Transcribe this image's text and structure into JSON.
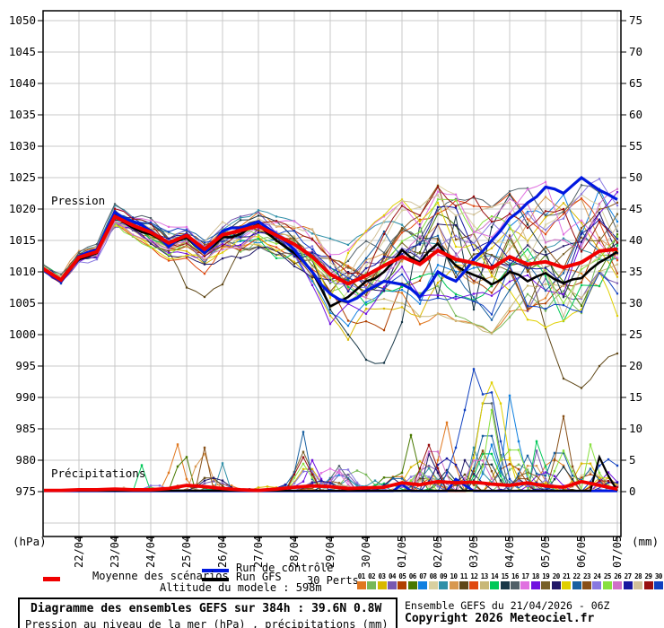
{
  "legend": {
    "mean_label": "Moyenne des scénarios",
    "control_label": "Run de contrôle",
    "gfs_label": "Run GFS",
    "perts_label": "30 Perts.",
    "altitude_label": "Altitude du modele : 598m",
    "mean_color": "#f00000",
    "control_color": "#0018e0",
    "gfs_color": "#000000",
    "pert_numbers": [
      "01",
      "02",
      "03",
      "04",
      "05",
      "06",
      "07",
      "08",
      "09",
      "10",
      "11",
      "12",
      "13",
      "14",
      "15",
      "16",
      "17",
      "18",
      "19",
      "20",
      "21",
      "22",
      "23",
      "24",
      "25",
      "26",
      "27",
      "28",
      "29",
      "30"
    ]
  },
  "footer": {
    "title": "Diagramme des ensembles GEFS sur 384h : 39.6N 0.8W",
    "subtitle": "Pression au niveau de la mer (hPa) , précipitations (mm)",
    "run_info": "Ensemble GEFS du 21/04/2026 - 06Z",
    "copyright": "Copyright 2026 Meteociel.fr"
  },
  "chart_data": {
    "type": "line",
    "title": "Diagramme des ensembles GEFS sur 384h : 39.6N 0.8W",
    "subtitle": "Pression au niveau de la mer (hPa) , précipitations (mm)",
    "pressure_area_label": "Pression",
    "precip_area_label": "Précipitations",
    "left_unit": "(hPa)",
    "right_unit": "(mm)",
    "x_axis": {
      "labels": [
        "22/04",
        "23/04",
        "24/04",
        "25/04",
        "26/04",
        "27/04",
        "28/04",
        "29/04",
        "30/04",
        "01/05",
        "02/05",
        "03/05",
        "04/05",
        "05/05",
        "06/05",
        "07/05"
      ],
      "step_hours": 12,
      "range_hours": 384
    },
    "y_left": {
      "ticks": [
        975,
        980,
        985,
        990,
        995,
        1000,
        1005,
        1010,
        1015,
        1020,
        1025,
        1030,
        1035,
        1040,
        1045,
        1050
      ],
      "range": [
        967.5,
        1051.5
      ]
    },
    "y_right": {
      "ticks": [
        0,
        5,
        10,
        15,
        20,
        25,
        30,
        35,
        40,
        45,
        50,
        55,
        60,
        65,
        70,
        75
      ],
      "range": [
        0,
        80
      ]
    },
    "grid": true,
    "legend_position": "bottom",
    "pressure": {
      "mean": [
        1010.5,
        1008.7,
        1012.3,
        1013.2,
        1018.8,
        1017.4,
        1016.3,
        1014.6,
        1015.8,
        1013.6,
        1015.9,
        1016.6,
        1017.3,
        1015.8,
        1014.4,
        1012.4,
        1009.6,
        1008.1,
        1009.4,
        1011.0,
        1012.4,
        1011.2,
        1013.4,
        1012.0,
        1011.4,
        1010.6,
        1012.4,
        1011.2,
        1011.6,
        1010.7,
        1011.5,
        1013.3,
        1013.6
      ],
      "control": [
        1010.3,
        1008.5,
        1012.5,
        1013.5,
        1019.5,
        1018.0,
        1016.5,
        1014.0,
        1016.0,
        1013.0,
        1016.5,
        1017.0,
        1018.0,
        1016.0,
        1013.5,
        1010.0,
        1006.5,
        1005.2,
        1007.0,
        1008.5,
        1008.0,
        1006.0,
        1010.0,
        1008.5,
        1012.0,
        1015.0,
        1018.5,
        1021.0,
        1023.5,
        1022.5,
        1025.0,
        1023.0,
        1021.5
      ],
      "gfs": [
        1010.4,
        1008.6,
        1012.0,
        1013.0,
        1019.0,
        1017.0,
        1016.0,
        1014.5,
        1015.5,
        1013.0,
        1015.5,
        1016.0,
        1017.5,
        1015.0,
        1013.0,
        1010.0,
        1004.5,
        1006.0,
        1008.5,
        1010.0,
        1013.5,
        1011.5,
        1014.5,
        1011.0,
        1009.5,
        1008.0,
        1010.0,
        1008.5,
        1009.8,
        1008.2,
        1009.0,
        1011.5,
        1013.2
      ],
      "env_min": [
        1009.5,
        1007.8,
        1011.3,
        1012.0,
        1016.5,
        1015.0,
        1013.8,
        1012.0,
        1012.5,
        1010.0,
        1011.5,
        1011.0,
        1013.0,
        1011.0,
        1009.0,
        1005.5,
        1001.5,
        999.5,
        1000.0,
        1001.0,
        1002.0,
        999.0,
        1003.0,
        1002.5,
        1002.0,
        1000.5,
        1003.0,
        1000.0,
        1001.0,
        997.0,
        999.0,
        1002.0,
        1002.5
      ],
      "env_max": [
        1011.5,
        1009.6,
        1013.3,
        1014.3,
        1020.5,
        1019.2,
        1018.5,
        1017.0,
        1018.0,
        1016.5,
        1018.2,
        1018.5,
        1019.5,
        1018.5,
        1018.0,
        1016.5,
        1015.0,
        1014.0,
        1016.0,
        1018.5,
        1021.0,
        1020.0,
        1023.5,
        1022.0,
        1021.5,
        1020.0,
        1022.5,
        1023.0,
        1024.0,
        1022.0,
        1023.5,
        1024.5,
        1024.5
      ],
      "member_anchors": {
        "6": [
          [
            30,
            1016.0
          ],
          [
            32,
            1018.0
          ]
        ],
        "10": [
          [
            8,
            1007.5
          ],
          [
            9,
            1006.0
          ],
          [
            10,
            1008.0
          ],
          [
            26,
            1011.0
          ],
          [
            28,
            1001.0
          ],
          [
            29,
            993.0
          ],
          [
            30,
            991.5
          ],
          [
            31,
            995.0
          ],
          [
            32,
            997.0
          ]
        ],
        "14": [
          [
            16,
            1004.0
          ],
          [
            17,
            1000.0
          ],
          [
            18,
            996.0
          ],
          [
            19,
            995.5
          ],
          [
            20,
            1002.0
          ],
          [
            22,
            1006.0
          ],
          [
            24,
            1004.0
          ]
        ],
        "20": [
          [
            17,
            1013.0
          ],
          [
            18,
            1016.5
          ],
          [
            19,
            1019.0
          ],
          [
            20,
            1021.5
          ],
          [
            21,
            1018.0
          ],
          [
            22,
            1021.0
          ],
          [
            23,
            1014.0
          ],
          [
            26,
            1007.0
          ],
          [
            30,
            1004.0
          ],
          [
            32,
            1003.0
          ]
        ],
        "28": [
          [
            19,
            1016.0
          ],
          [
            20,
            1020.5
          ],
          [
            21,
            1019.0
          ],
          [
            22,
            1023.5
          ],
          [
            23,
            1020.5
          ],
          [
            24,
            1022.0
          ],
          [
            25,
            1018.0
          ],
          [
            27,
            1017.0
          ],
          [
            29,
            1020.0
          ],
          [
            31,
            1018.0
          ]
        ]
      }
    },
    "precip": {
      "mean": [
        0.2,
        0.2,
        0.3,
        0.3,
        0.4,
        0.3,
        0.3,
        0.5,
        1.0,
        0.8,
        0.5,
        0.3,
        0.2,
        0.4,
        0.7,
        0.9,
        0.8,
        0.5,
        0.6,
        0.7,
        1.4,
        1.1,
        1.6,
        1.4,
        1.5,
        1.2,
        1.0,
        1.4,
        0.9,
        0.7,
        1.6,
        1.0,
        0.4
      ],
      "max_env": [
        0.5,
        0.5,
        0.6,
        0.8,
        1.5,
        2,
        1.5,
        4.5,
        8,
        7,
        3,
        1,
        1,
        3,
        9.5,
        7,
        6.5,
        3.5,
        7,
        5.5,
        11,
        9,
        12,
        14,
        19.5,
        15.5,
        8,
        7,
        12,
        7.5,
        7.5,
        4.5,
        2.5
      ],
      "member_spikes": {
        "0": [
          [
            14,
            3
          ],
          [
            15,
            7.5
          ],
          [
            16,
            2
          ],
          [
            44,
            5
          ],
          [
            45,
            11
          ],
          [
            46,
            4
          ]
        ],
        "3": [
          [
            55,
            6.5
          ],
          [
            56,
            2
          ]
        ],
        "5": [
          [
            15,
            4
          ],
          [
            16,
            5.5
          ],
          [
            40,
            3
          ],
          [
            41,
            9
          ],
          [
            42,
            3
          ]
        ],
        "6": [
          [
            51,
            3
          ],
          [
            52,
            15.3
          ],
          [
            53,
            8
          ],
          [
            54,
            2
          ]
        ],
        "8": [
          [
            20,
            4.5
          ],
          [
            48,
            7
          ],
          [
            49,
            3
          ]
        ],
        "9": [
          [
            17,
            4
          ],
          [
            18,
            6
          ],
          [
            19,
            2
          ]
        ],
        "13": [
          [
            11,
            4.2
          ],
          [
            55,
            8
          ],
          [
            56,
            4
          ]
        ],
        "17": [
          [
            30,
            5
          ],
          [
            31,
            2
          ]
        ],
        "19": [
          [
            43,
            6
          ],
          [
            44,
            3
          ],
          [
            47,
            5
          ]
        ],
        "21": [
          [
            28,
            3
          ],
          [
            29,
            9.5
          ],
          [
            30,
            2
          ]
        ],
        "22": [
          [
            18,
            7
          ],
          [
            57,
            5
          ],
          [
            58,
            12
          ],
          [
            59,
            4
          ]
        ],
        "24": [
          [
            49,
            4
          ],
          [
            50,
            13
          ],
          [
            51,
            5
          ],
          [
            61,
            7.5
          ],
          [
            62,
            3
          ]
        ],
        "29": [
          [
            45,
            3
          ],
          [
            46,
            7
          ],
          [
            47,
            13
          ],
          [
            48,
            19.5
          ],
          [
            49,
            15.5
          ],
          [
            50,
            15.8
          ],
          [
            51,
            8
          ],
          [
            52,
            2
          ]
        ]
      },
      "gfs_spikes": [
        [
          62,
          5.5
        ],
        [
          63,
          2.5
        ]
      ],
      "control_spikes": [
        [
          40,
          1.2
        ],
        [
          46,
          2
        ],
        [
          47,
          1
        ]
      ]
    },
    "members": {
      "count": 30,
      "colors": [
        "#e07820",
        "#78b858",
        "#d8b800",
        "#7858b0",
        "#b04000",
        "#487800",
        "#1080e0",
        "#d8d0a0",
        "#3090a8",
        "#d89850",
        "#604818",
        "#e04810",
        "#c8b878",
        "#00c858",
        "#183848",
        "#506068",
        "#e070e0",
        "#7010e0",
        "#786028",
        "#201868",
        "#e0d000",
        "#1860a0",
        "#885018",
        "#8878e0",
        "#88e040",
        "#d070c8",
        "#1818a0",
        "#d0c098",
        "#981010",
        "#1040c0"
      ]
    }
  }
}
